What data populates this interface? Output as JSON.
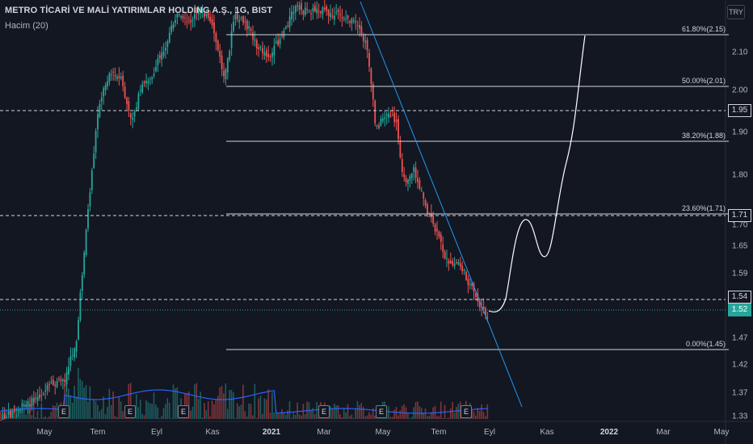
{
  "header": {
    "symbol_title": "METRO TİCARİ VE MALİ YATIRIMLAR HOLDİNG A.Ş., 1G, BIST",
    "indicator": "Hacim (20)",
    "currency": "TRY"
  },
  "colors": {
    "background": "#131722",
    "up": "#26a69a",
    "down": "#ef5350",
    "fib_line": "#d1d4dc",
    "volume_ma": "#2962ff",
    "trendline": "#2196f3"
  },
  "price_axis": {
    "ticks": [
      "2.10",
      "2.00",
      "1.90",
      "1.80",
      "1.70",
      "1.65",
      "1.59",
      "1.47",
      "1.42",
      "1.37",
      "1.33"
    ],
    "labels": [
      {
        "text": "1.95",
        "style": "outline"
      },
      {
        "text": "1.71",
        "style": "outline"
      },
      {
        "text": "1.54",
        "style": "outline"
      },
      {
        "text": "1.52",
        "style": "current"
      }
    ]
  },
  "time_axis": {
    "ticks": [
      "May",
      "Tem",
      "Eyl",
      "Kas",
      "2021",
      "Mar",
      "May",
      "Tem",
      "Eyl",
      "Kas",
      "2022",
      "Mar",
      "May"
    ],
    "bold": [
      "2021",
      "2022"
    ]
  },
  "fibonacci": [
    {
      "label": "61.80%(2.15)"
    },
    {
      "label": "50.00%(2.01)"
    },
    {
      "label": "38.20%(1.88)"
    },
    {
      "label": "23.60%(1.71)"
    },
    {
      "label": "0.00%(1.45)"
    }
  ],
  "events": [
    "E",
    "E",
    "E",
    "E",
    "E",
    "E"
  ]
}
